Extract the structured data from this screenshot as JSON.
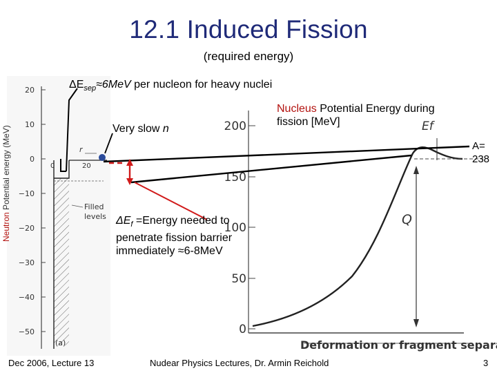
{
  "slide": {
    "title": "12.1 Induced Fission",
    "subtitle": "(required energy)",
    "esep": {
      "symbol": "ΔE",
      "subscript": "sep",
      "approx": "≈6MeV",
      "rest": " per nucleon for heavy nuclei"
    },
    "slow_neutron": {
      "prefix": "Very slow ",
      "n": "n"
    },
    "nucleus_label": {
      "red_part": "Nucleus",
      "rest": " Potential Energy during fission [MeV]"
    },
    "mass_number": {
      "line1": "A=",
      "line2": "238"
    },
    "fission_barrier": {
      "symbol": "ΔE",
      "subscript": "f",
      "text": " =Energy needed to penetrate fission barrier immediately ≈6-8MeV"
    },
    "footer": {
      "left": "Dec 2006, Lecture 13",
      "center": "Nudear Physics  Lectures, Dr. Armin Reichold",
      "page": "3"
    }
  },
  "left_plot": {
    "ylabel_prefix": "Neutron",
    "ylabel": " Potential energy (MeV)",
    "ytick_labels": [
      "20",
      "10",
      "0",
      "−10",
      "−20",
      "−30",
      "−40",
      "−50"
    ],
    "xtick_labels": [
      "0",
      "20"
    ],
    "r_label": "r",
    "filled_levels": "Filled levels",
    "panel_label": "(a)"
  },
  "right_plot": {
    "ytick_labels": [
      "200",
      "150",
      "100",
      "50",
      "0"
    ],
    "ef_label": "Ef",
    "q_label": "Q",
    "xlabel": "Deformation or fragment separation"
  },
  "colors": {
    "title": "#1f2a78",
    "accent_red": "#d11a1a",
    "dark_red": "#b3120f",
    "dot_blue": "#2a4a9a"
  }
}
